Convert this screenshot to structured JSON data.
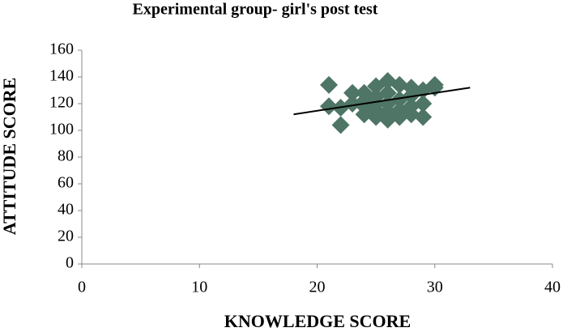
{
  "chart_data": {
    "type": "scatter",
    "title": "Experimental group- girl's post test",
    "x_label": "KNOWLEDGE SCORE",
    "y_label": "ATTITUDE SCORE",
    "xlim": [
      0,
      40
    ],
    "xticks": [
      0,
      10,
      20,
      30,
      40
    ],
    "ylim": [
      0,
      160
    ],
    "yticks": [
      0,
      20,
      40,
      60,
      80,
      100,
      120,
      140,
      160
    ],
    "grid": false,
    "series": [
      {
        "color": "#4e7565",
        "x": [
          21,
          21,
          22,
          22,
          23,
          23,
          24,
          24,
          24,
          24,
          25,
          25,
          25,
          25,
          25,
          26,
          26,
          26,
          26,
          26,
          27,
          27,
          27,
          27,
          28,
          28,
          28,
          28,
          29,
          29,
          29,
          30,
          30
        ],
        "values": [
          134,
          118,
          104,
          117,
          128,
          120,
          122,
          112,
          128,
          118,
          115,
          133,
          125,
          110,
          120,
          137,
          120,
          108,
          128,
          114,
          134,
          115,
          123,
          110,
          132,
          118,
          112,
          126,
          110,
          130,
          120,
          134,
          132
        ]
      }
    ],
    "trendline": {
      "color": "#000000",
      "x": [
        18,
        33
      ],
      "values": [
        112,
        132
      ]
    }
  }
}
